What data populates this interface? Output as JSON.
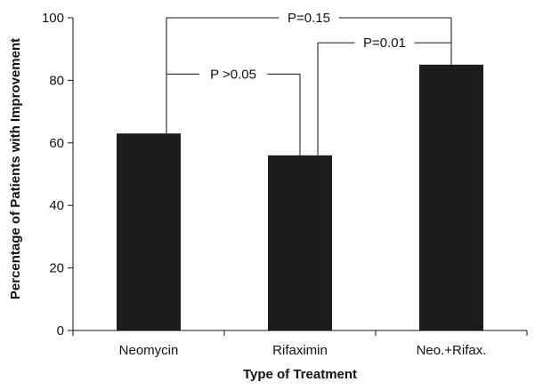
{
  "chart_data": {
    "type": "bar",
    "categories": [
      "Neomycin",
      "Rifaximin",
      "Neo.+Rifax."
    ],
    "values": [
      63,
      56,
      85
    ],
    "xlabel": "Type of Treatment",
    "ylabel": "Percentage of Patients with Improvement",
    "ylim": [
      0,
      100
    ],
    "yticks": [
      0,
      20,
      40,
      60,
      80,
      100
    ],
    "grid": false,
    "colors": {
      "bar": "#1c1c1c",
      "axis": "#111111",
      "bracket": "#111111"
    },
    "annotations": [
      {
        "label": "P >0.05",
        "from": "Neomycin",
        "to": "Rifaximin",
        "level": 82
      },
      {
        "label": "P=0.01",
        "from": "Rifaximin",
        "to": "Neo.+Rifax.",
        "level": 92
      },
      {
        "label": "P=0.15",
        "from": "Neomycin",
        "to": "Neo.+Rifax.",
        "level": 100
      }
    ]
  }
}
